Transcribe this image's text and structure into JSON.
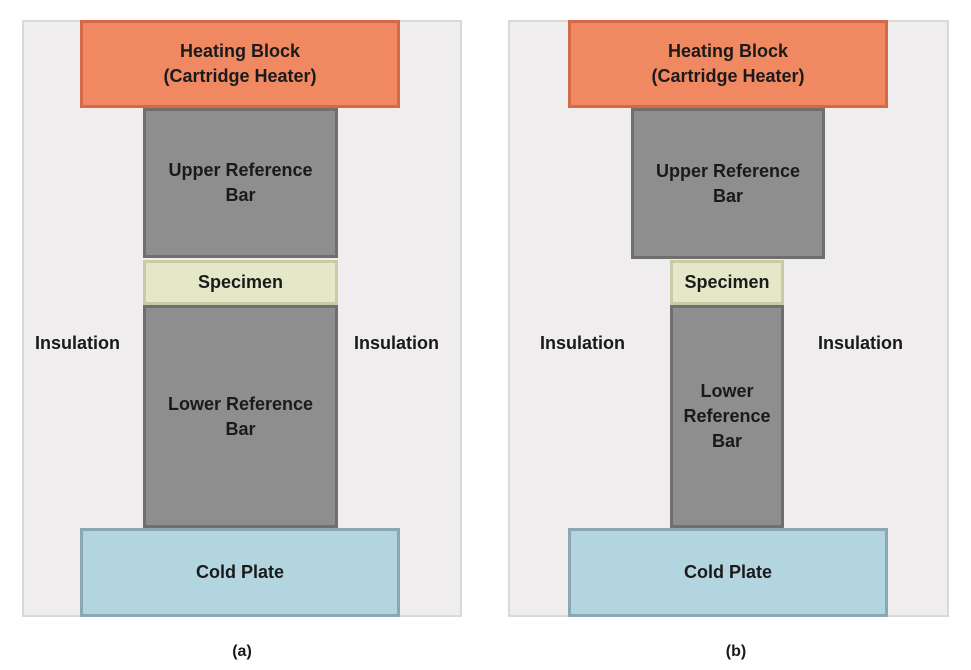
{
  "panel_a": {
    "heating_block": "Heating Block\n(Cartridge Heater)",
    "upper_reference_bar": "Upper Reference\nBar",
    "specimen": "Specimen",
    "lower_reference_bar": "Lower Reference\nBar",
    "cold_plate": "Cold Plate",
    "insulation_left": "Insulation",
    "insulation_right": "Insulation",
    "caption": "(a)"
  },
  "panel_b": {
    "heating_block": "Heating Block\n(Cartridge Heater)",
    "upper_reference_bar": "Upper Reference\nBar",
    "specimen": "Specimen",
    "lower_reference_bar": "Lower\nReference\nBar",
    "cold_plate": "Cold Plate",
    "insulation_left": "Insulation",
    "insulation_right": "Insulation",
    "caption": "(b)"
  },
  "colors": {
    "heating_block": "#f08862",
    "reference_bar": "#8e8e8e",
    "specimen": "#e5e7c9",
    "cold_plate": "#b3d5df",
    "insulation_background": "#efedee"
  }
}
